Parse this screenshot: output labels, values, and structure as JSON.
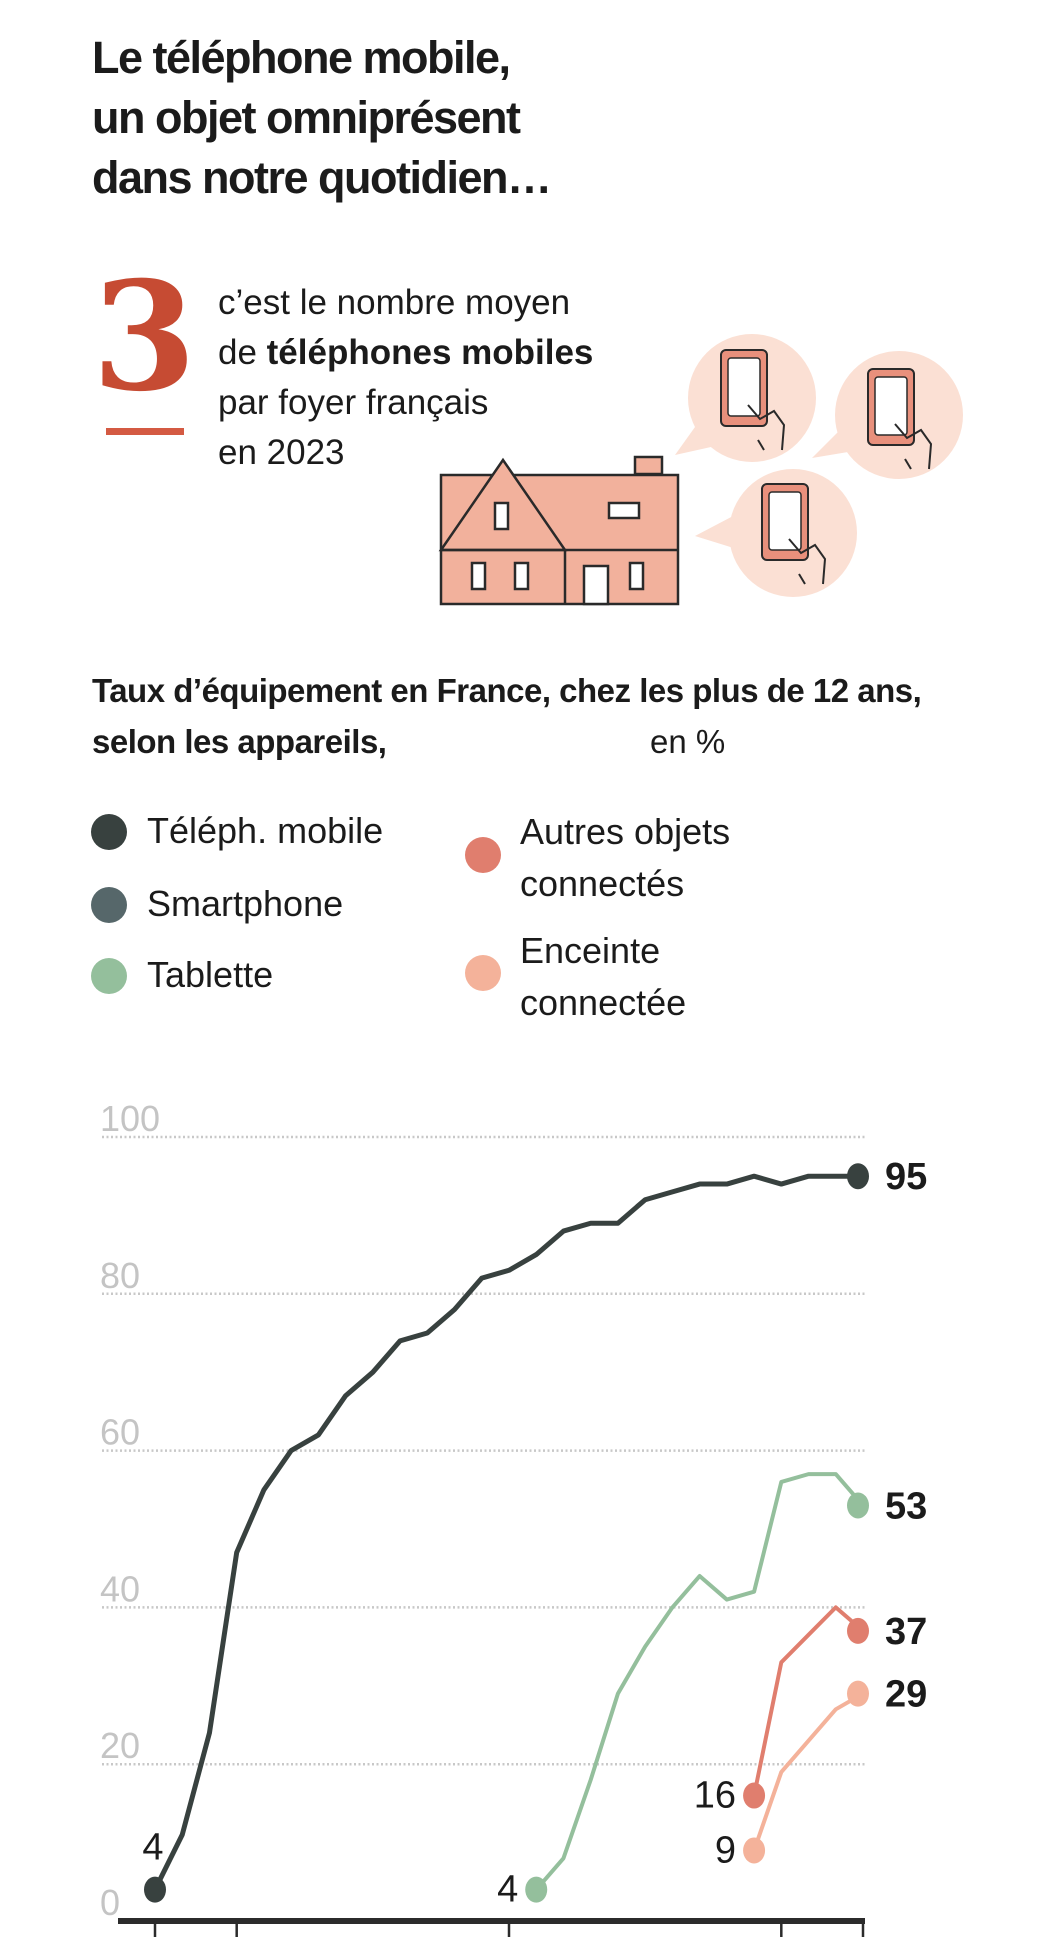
{
  "header": {
    "title_lines": [
      "Le téléphone mobile,",
      "un objet omniprésent",
      "dans notre quotidien…"
    ]
  },
  "stat": {
    "number": "3",
    "line1": "c’est le nombre moyen",
    "line2_prefix": "de ",
    "line2_bold": "téléphones mobiles",
    "line3": "par foyer français",
    "line4": "en 2023"
  },
  "colors": {
    "accent": "#c64b33",
    "house": "#f2b19c",
    "bubble": "#fbe0d4",
    "phone": "#e8907c"
  },
  "chart_data": {
    "type": "line",
    "title_bold": "Taux d’équipement en France, chez les plus de 12 ans, selon les appareils,",
    "title_unit": "en %",
    "legend": "top",
    "ylim": [
      0,
      100
    ],
    "yticks": [
      0,
      20,
      40,
      60,
      80,
      100
    ],
    "xticks": [
      1997,
      2000,
      2010,
      2020,
      2023
    ],
    "xlim": [
      1997,
      2023
    ],
    "grid": true,
    "series": [
      {
        "name": "Téléph. mobile",
        "color": "#38413f",
        "x": [
          1997,
          1998,
          1999,
          2000,
          2001,
          2002,
          2003,
          2004,
          2005,
          2006,
          2007,
          2008,
          2009,
          2010,
          2011,
          2012,
          2013,
          2014,
          2015,
          2016,
          2017,
          2018,
          2019,
          2020,
          2021,
          2022,
          2023
        ],
        "y": [
          4,
          11,
          24,
          47,
          55,
          60,
          62,
          67,
          70,
          74,
          75,
          78,
          82,
          83,
          85,
          88,
          89,
          89,
          92,
          93,
          94,
          94,
          95,
          94,
          95,
          95,
          95
        ],
        "start_label": "4",
        "end_label": "95"
      },
      {
        "name": "Smartphone",
        "color": "#56676a",
        "x": [],
        "y": []
      },
      {
        "name": "Tablette",
        "color": "#94bf9c",
        "x": [
          2011,
          2012,
          2013,
          2014,
          2015,
          2016,
          2017,
          2018,
          2019,
          2020,
          2021,
          2022,
          2023
        ],
        "y": [
          4,
          8,
          18,
          29,
          35,
          40,
          44,
          41,
          42,
          56,
          57,
          57,
          53
        ],
        "start_label": "4",
        "end_label": "53"
      },
      {
        "name": "Autres objets connectés",
        "color": "#e07e6e",
        "x": [
          2019,
          2020,
          2021,
          2022,
          2023
        ],
        "y": [
          16,
          33,
          36.5,
          40,
          37
        ],
        "start_label": "16",
        "end_label": "37"
      },
      {
        "name": "Enceinte connectée",
        "color": "#f4b29a",
        "x": [
          2019,
          2020,
          2021,
          2022,
          2023
        ],
        "y": [
          9,
          19,
          23,
          27,
          29
        ],
        "start_label": "9",
        "end_label": "29"
      }
    ]
  },
  "legend_items": [
    {
      "lines": [
        "Téléph. mobile"
      ]
    },
    {
      "lines": [
        "Smartphone"
      ]
    },
    {
      "lines": [
        "Tablette"
      ]
    },
    {
      "lines": [
        "Autres objets",
        "connectés"
      ]
    },
    {
      "lines": [
        "Enceinte",
        "connectée"
      ]
    }
  ]
}
